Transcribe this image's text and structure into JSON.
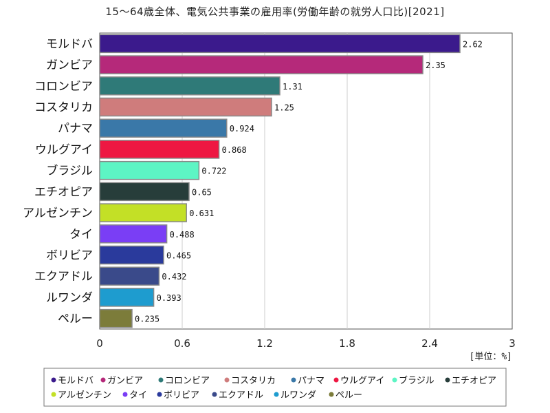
{
  "chart_data": {
    "type": "bar",
    "orientation": "horizontal",
    "title": "15～64歳全体、電気公共事業の雇用率(労働年齢の就労人口比)[2021]",
    "unit": "[単位：%]",
    "categories": [
      "モルドバ",
      "ガンビア",
      "コロンビア",
      "コスタリカ",
      "パナマ",
      "ウルグアイ",
      "ブラジル",
      "エチオピア",
      "アルゼンチン",
      "タイ",
      "ボリビア",
      "エクアドル",
      "ルワンダ",
      "ペルー"
    ],
    "values": [
      2.62,
      2.35,
      1.31,
      1.25,
      0.924,
      0.868,
      0.722,
      0.65,
      0.631,
      0.488,
      0.465,
      0.432,
      0.393,
      0.235
    ],
    "value_labels": [
      "2.62",
      "2.35",
      "1.31",
      "1.25",
      "0.924",
      "0.868",
      "0.722",
      "0.65",
      "0.631",
      "0.488",
      "0.465",
      "0.432",
      "0.393",
      "0.235"
    ],
    "colors": [
      "#3b1a8c",
      "#b5297a",
      "#2f7a78",
      "#cf7c7c",
      "#3a78a8",
      "#ee1742",
      "#5df5c4",
      "#273d3a",
      "#c3e026",
      "#7a3ef5",
      "#2a3a9c",
      "#3a4a8a",
      "#1e9ccf",
      "#7c7c3a"
    ],
    "xlim": [
      0,
      3
    ],
    "x_ticks": [
      "0",
      "0.6",
      "1.2",
      "1.8",
      "2.4",
      "3"
    ],
    "x_tick_values": [
      0,
      0.6,
      1.2,
      1.8,
      2.4,
      3
    ],
    "grid": true,
    "legend_position": "bottom"
  }
}
